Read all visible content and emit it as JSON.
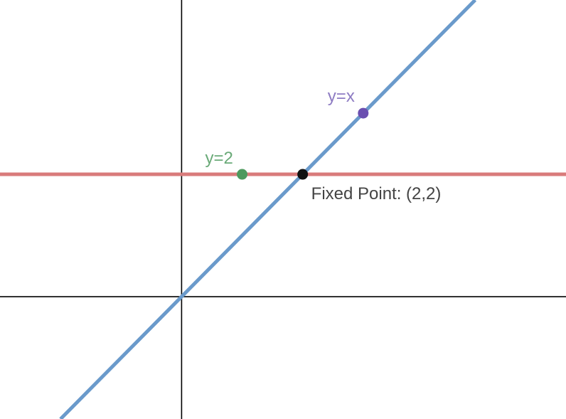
{
  "chart_data": {
    "type": "line",
    "title": "",
    "xlabel": "",
    "ylabel": "",
    "grid": false,
    "xlim": [
      -3,
      6.35
    ],
    "ylim": [
      -2,
      4.85
    ],
    "axes_color": "#000000",
    "series": [
      {
        "name": "y=2",
        "equation": "y=2",
        "kind": "horizontal",
        "y": 2,
        "color": "#d97b7b"
      },
      {
        "name": "y=x",
        "equation": "y=x",
        "kind": "identity",
        "color": "#6a9acb"
      }
    ],
    "points": [
      {
        "x": 1,
        "y": 2,
        "color": "#4e9a5e"
      },
      {
        "x": 3,
        "y": 3,
        "color": "#6b4fb0"
      },
      {
        "x": 2,
        "y": 2,
        "color": "#111111"
      }
    ],
    "labels": [
      {
        "text": "y=2",
        "color": "#6aaa78"
      },
      {
        "text": "y=x",
        "color": "#8e7cc3"
      },
      {
        "text": "Fixed Point: (2,2)",
        "color": "#444444"
      }
    ]
  }
}
